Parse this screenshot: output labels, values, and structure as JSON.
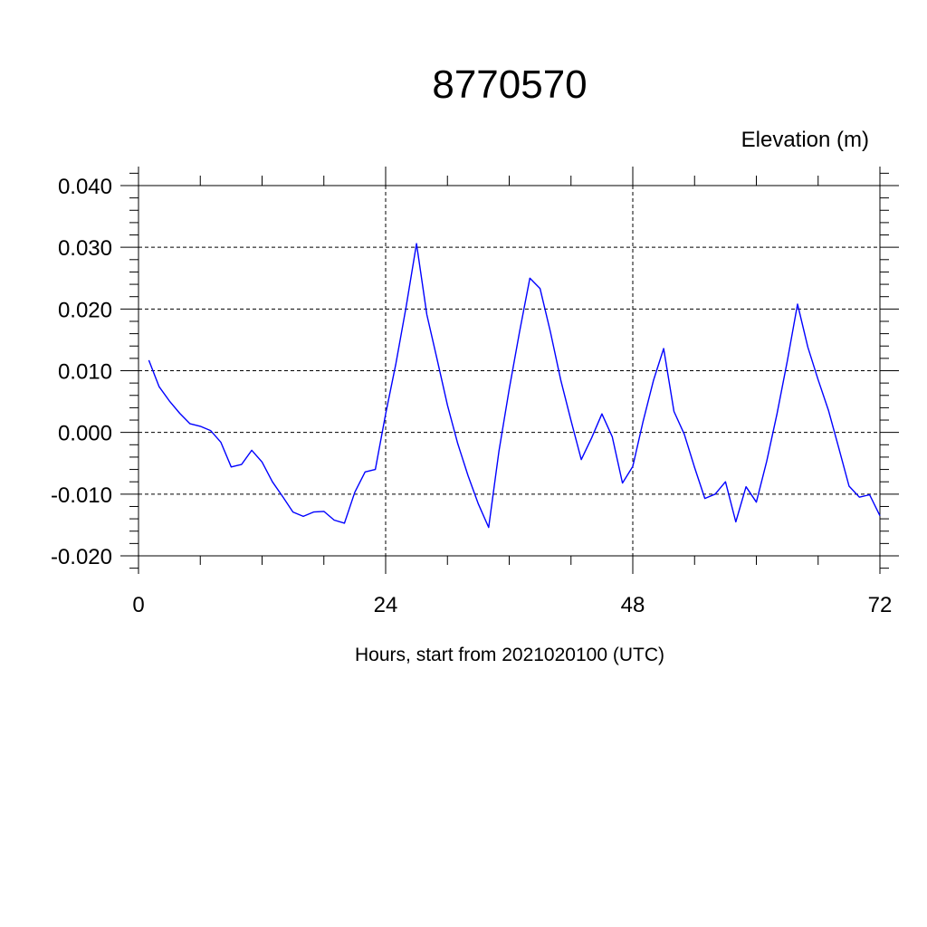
{
  "chart_data": {
    "type": "line",
    "title": "8770570",
    "ylabel": "Elevation (m)",
    "xlabel": "Hours, start from 2021020100 (UTC)",
    "xlim": [
      0,
      72
    ],
    "ylim": [
      -0.02,
      0.04
    ],
    "x_ticks": [
      0,
      24,
      48,
      72
    ],
    "x_tick_labels": [
      "0",
      "24",
      "48",
      "72"
    ],
    "y_ticks": [
      -0.02,
      -0.01,
      0.0,
      0.01,
      0.02,
      0.03,
      0.04
    ],
    "y_tick_labels": [
      "-0.020",
      "-0.010",
      "0.000",
      "0.010",
      "0.020",
      "0.030",
      "0.040"
    ],
    "grid": true,
    "series": [
      {
        "color": "#0000ff",
        "x": [
          1,
          2,
          3,
          4,
          5,
          6,
          7,
          8,
          9,
          10,
          11,
          12,
          13,
          14,
          15,
          16,
          17,
          18,
          19,
          20,
          21,
          22,
          23,
          24,
          25,
          26,
          27,
          28,
          29,
          30,
          31,
          32,
          33,
          34,
          35,
          36,
          37,
          38,
          39,
          40,
          41,
          42,
          43,
          44,
          45,
          46,
          47,
          48,
          49,
          50,
          51,
          52,
          53,
          54,
          55,
          56,
          57,
          58,
          59,
          60,
          61,
          62,
          63,
          64,
          65,
          66,
          67,
          68,
          69,
          70,
          71,
          72
        ],
        "values": [
          0.0117,
          0.0074,
          0.0051,
          0.0031,
          0.0014,
          0.001,
          0.0003,
          -0.0016,
          -0.0056,
          -0.0052,
          -0.0029,
          -0.0048,
          -0.008,
          -0.0104,
          -0.0129,
          -0.0136,
          -0.0129,
          -0.0128,
          -0.0142,
          -0.0147,
          -0.0097,
          -0.0064,
          -0.006,
          0.003,
          0.0112,
          0.0205,
          0.0306,
          0.0191,
          0.0118,
          0.0044,
          -0.0018,
          -0.007,
          -0.0116,
          -0.0154,
          -0.0031,
          0.007,
          0.0163,
          0.025,
          0.0233,
          0.0163,
          0.0085,
          0.0019,
          -0.0044,
          -0.0009,
          0.003,
          -0.0007,
          -0.0082,
          -0.0055,
          0.0018,
          0.0084,
          0.0136,
          0.0034,
          -0.0003,
          -0.0057,
          -0.0107,
          -0.01,
          -0.008,
          -0.0145,
          -0.0088,
          -0.0113,
          -0.0047,
          0.003,
          0.0115,
          0.0208,
          0.0138,
          0.0085,
          0.0036,
          -0.0025,
          -0.0087,
          -0.0105,
          -0.0101,
          -0.0135
        ]
      }
    ]
  }
}
